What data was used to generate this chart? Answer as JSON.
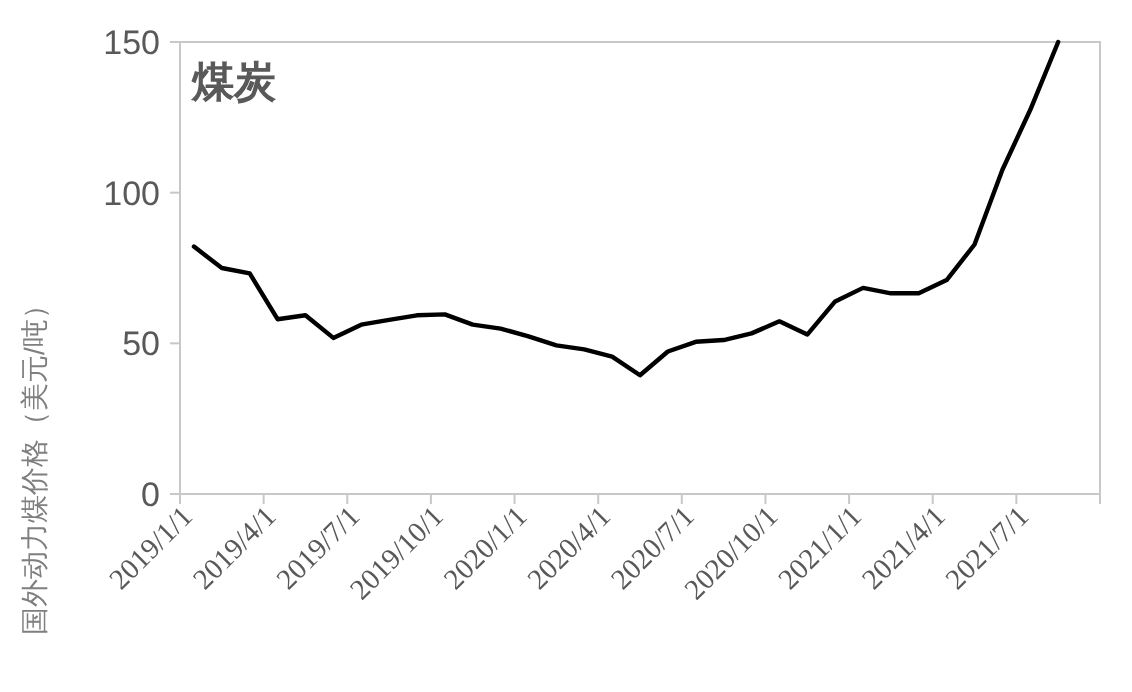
{
  "chart_data": {
    "type": "line",
    "title": "煤炭",
    "ylabel": "国外动力煤价格（美元/吨）",
    "categories": [
      "2019/1/1",
      null,
      null,
      "2019/4/1",
      null,
      null,
      "2019/7/1",
      null,
      null,
      "2019/10/1",
      null,
      null,
      "2020/1/1",
      null,
      null,
      "2020/4/1",
      null,
      null,
      "2020/7/1",
      null,
      null,
      "2020/10/1",
      null,
      null,
      "2021/1/1",
      null,
      null,
      "2021/4/1",
      null,
      null,
      "2021/7/1",
      null,
      null
    ],
    "series": [
      {
        "color": "#000000",
        "values": [
          82.1,
          75,
          73.2,
          58,
          59.3,
          51.8,
          56.2,
          57.8,
          59.3,
          59.6,
          56.2,
          54.9,
          52.3,
          49.3,
          48,
          45.6,
          39.4,
          47.3,
          50.5,
          51.1,
          53.3,
          57.3,
          52.9,
          63.9,
          68.4,
          66.6,
          66.6,
          71,
          82.8,
          107.6,
          127.5,
          150,
          null
        ]
      }
    ],
    "ylim": [
      0,
      150
    ],
    "yticks": [
      0,
      50,
      100,
      150
    ],
    "grid": false,
    "marker": "none",
    "line_style": "solid"
  }
}
